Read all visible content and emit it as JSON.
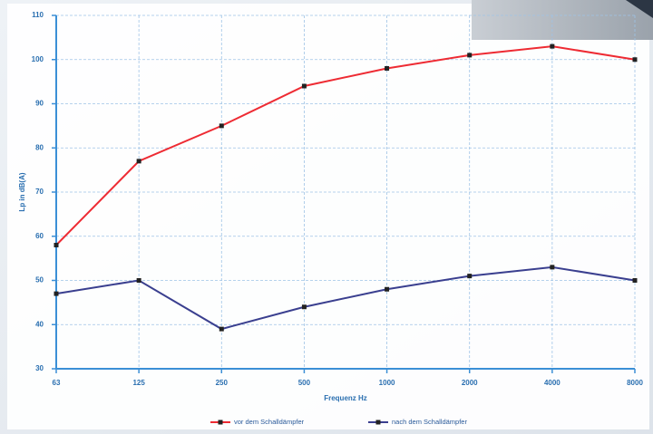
{
  "chart_data": {
    "type": "line",
    "x_label": "Frequenz  Hz",
    "y_label": "Lp in dB(A)",
    "categories": [
      "63",
      "125",
      "250",
      "500",
      "1000",
      "2000",
      "4000",
      "8000"
    ],
    "series": [
      {
        "name": "vor dem Schalldämpfer",
        "color": "#ee2b33",
        "values": [
          58,
          77,
          85,
          94,
          98,
          101,
          103,
          100
        ]
      },
      {
        "name": "nach dem Schalldämpfer",
        "color": "#3a3f8f",
        "values": [
          47,
          50,
          39,
          44,
          48,
          51,
          53,
          50
        ]
      }
    ],
    "ylim": [
      30,
      110
    ],
    "yticks": [
      30,
      40,
      50,
      60,
      70,
      80,
      90,
      100,
      110
    ],
    "grid": true,
    "legend": "bottom"
  }
}
